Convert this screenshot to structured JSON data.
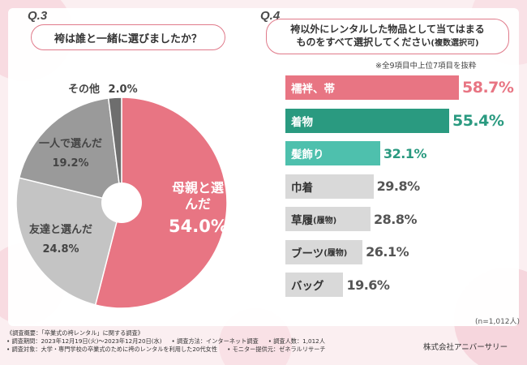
{
  "q3": {
    "label": "Q.3",
    "question": "袴は誰と一緒に選びましたか？",
    "chart_data": {
      "type": "pie",
      "title": "袴は誰と一緒に選びましたか？",
      "labels": [
        "母親と選んだ",
        "友達と選んだ",
        "一人で選んだ",
        "その他"
      ],
      "values": [
        54.0,
        24.8,
        19.2,
        2.0
      ],
      "value_texts": [
        "54.0%",
        "24.8%",
        "19.2%",
        "2.0%"
      ],
      "colors": [
        "#e87583",
        "#c4c4c4",
        "#9a9a9a",
        "#6e6e6e"
      ]
    }
  },
  "q4": {
    "label": "Q.4",
    "question_line1": "袴以外にレンタルした物品として当てはまる",
    "question_line2": "ものをすべて選択してください",
    "question_suffix": "(複数選択可)",
    "note": "※全9項目中上位7項目を抜粋",
    "n": "(n=1,012人)",
    "chart_data": {
      "type": "bar",
      "orientation": "horizontal",
      "title": "袴以外にレンタルした物品として当てはまるものをすべて選択してください(複数選択可)",
      "categories": [
        "襦袢、帯",
        "着物",
        "髪飾り",
        "巾着",
        "草履",
        "ブーツ",
        "バッグ"
      ],
      "category_suffixes": [
        "",
        "",
        "",
        "",
        "(履物)",
        "(履物)",
        ""
      ],
      "values": [
        58.7,
        55.4,
        32.1,
        29.8,
        28.8,
        26.1,
        19.6
      ],
      "value_texts": [
        "58.7%",
        "55.4%",
        "32.1%",
        "29.8%",
        "28.8%",
        "26.1%",
        "19.6%"
      ],
      "bar_colors": [
        "#e87583",
        "#2a9a80",
        "#4ec0ad",
        "#d9d9d9",
        "#d9d9d9",
        "#d9d9d9",
        "#d9d9d9"
      ],
      "label_colors": [
        "#ffffff",
        "#ffffff",
        "#ffffff",
        "#333333",
        "#333333",
        "#333333",
        "#333333"
      ],
      "value_colors": [
        "#e87583",
        "#2a9a80",
        "#2a9a80",
        "#555555",
        "#555555",
        "#555555",
        "#555555"
      ]
    }
  },
  "footer": {
    "line1": "《調査概要：「卒業式の袴レンタル」に関する調査》",
    "period": "• 調査期間：2023年12月19日(火)～2023年12月20日(水)",
    "method": "• 調査方法：インターネット調査",
    "count": "• 調査人数：1,012人",
    "target": "• 調査対象：大学・専門学校の卒業式のために袴のレンタルを利用した20代女性",
    "provider": "• モニター提供元：ゼネラルリサーチ",
    "company": "株式会社アニバーサリー"
  }
}
